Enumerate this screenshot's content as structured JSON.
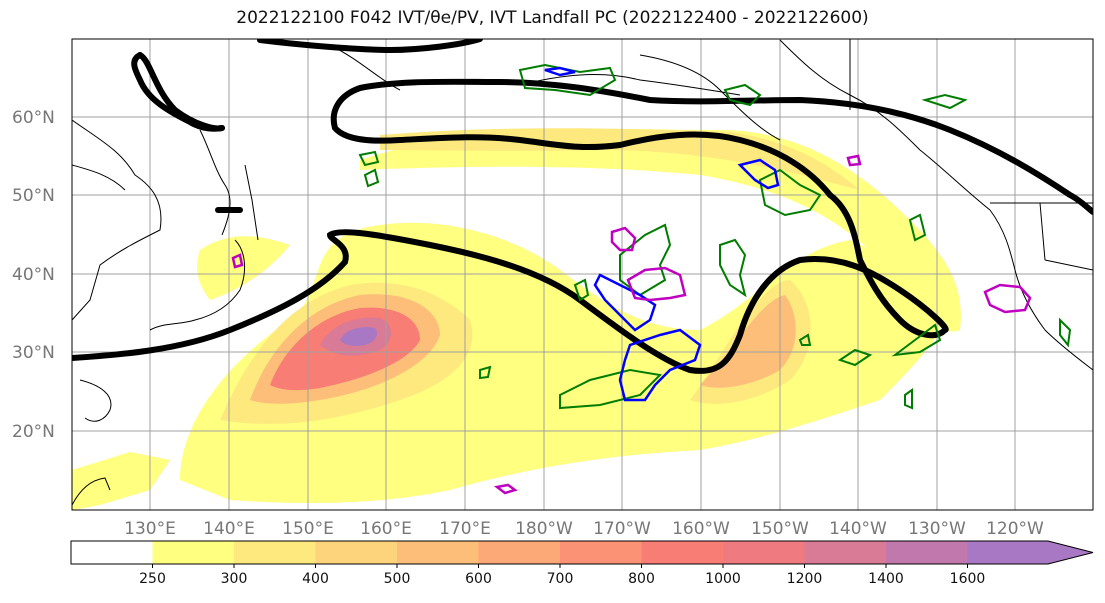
{
  "title": "2022122100 F042 IVT/θe/PV, IVT Landfall PC (2022122400 - 2022122600)",
  "map": {
    "lat_labels": [
      "60°N",
      "50°N",
      "40°N",
      "30°N",
      "20°N"
    ],
    "lon_labels": [
      "130°E",
      "140°E",
      "150°E",
      "160°E",
      "170°E",
      "180°W",
      "170°W",
      "160°W",
      "150°W",
      "140°W",
      "130°W",
      "120°W"
    ]
  },
  "colorbar": {
    "levels": [
      "250",
      "300",
      "400",
      "500",
      "600",
      "700",
      "800",
      "1000",
      "1200",
      "1400",
      "1600"
    ],
    "colors": [
      "#ffff80",
      "#fde97e",
      "#fdd37c",
      "#fdbe79",
      "#fda877",
      "#fc9275",
      "#f87d74",
      "#ef7a80",
      "#d97a96",
      "#c078ad",
      "#a878c4"
    ]
  },
  "colors": {
    "theta_e_contour": "#007d00",
    "pv_contour_blue": "#0000ff",
    "pv_contour_magenta": "#c000c0",
    "pc_contour": "#000000",
    "coastline": "#000000",
    "gridline": "#a0a0a0"
  }
}
